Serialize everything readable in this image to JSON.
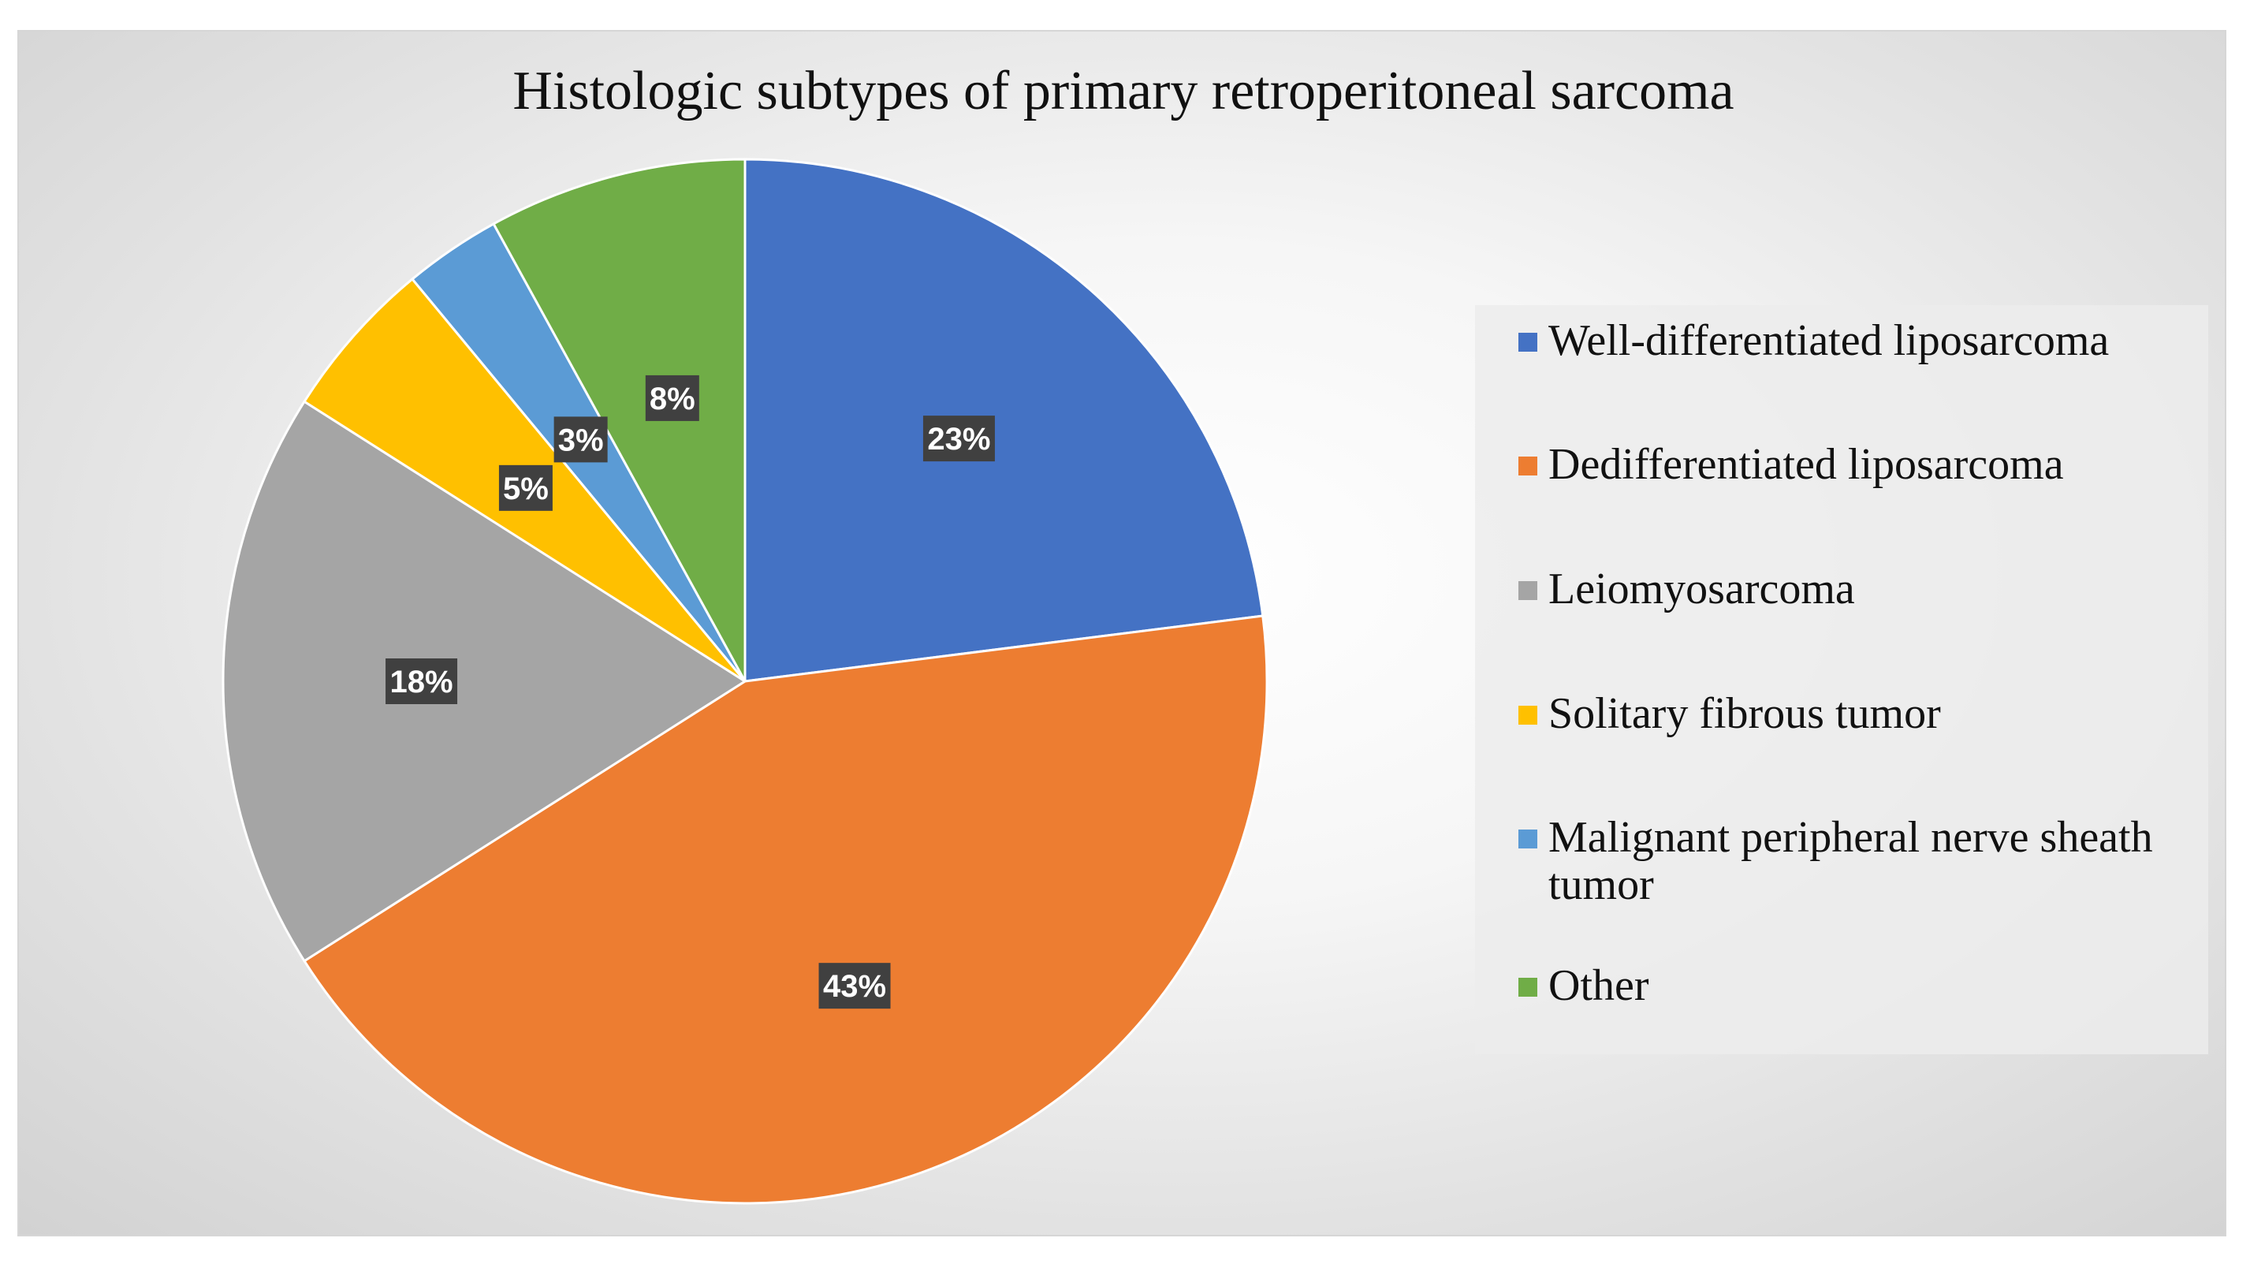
{
  "chart_data": {
    "type": "pie",
    "title": "Histologic subtypes of primary retroperitoneal sarcoma",
    "categories": [
      "Well-differentiated liposarcoma",
      "Dedifferentiated liposarcoma",
      "Leiomyosarcoma",
      "Solitary fibrous tumor",
      "Malignant peripheral nerve sheath tumor",
      "Other"
    ],
    "values": [
      23,
      43,
      18,
      5,
      3,
      8
    ],
    "data_labels": [
      "23%",
      "43%",
      "18%",
      "5%",
      "3%",
      "8%"
    ],
    "colors": [
      "#4472C4",
      "#ED7D31",
      "#A5A5A5",
      "#FFC000",
      "#5B9BD5",
      "#70AD47"
    ],
    "legend_position": "right"
  }
}
